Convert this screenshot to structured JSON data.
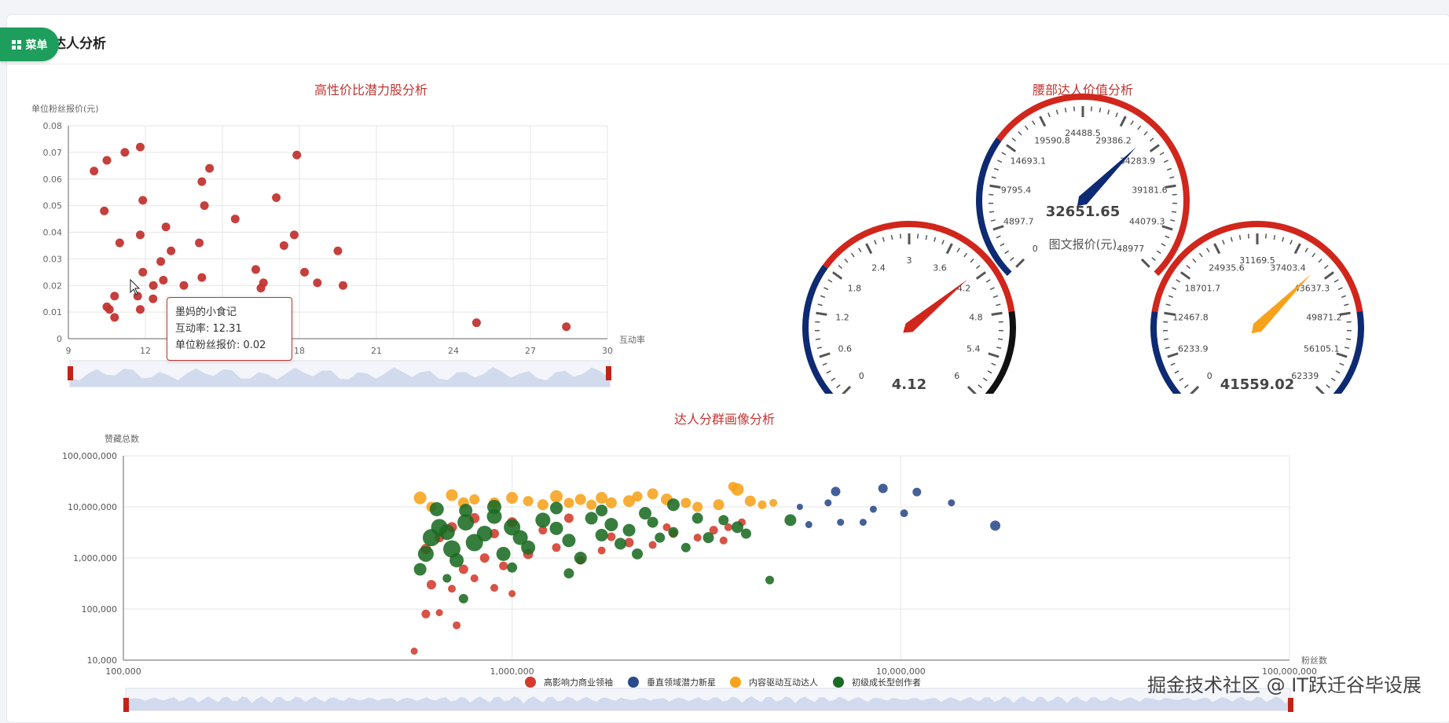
{
  "page": {
    "title": "达人分析",
    "menu_label": "菜单"
  },
  "colors": {
    "accent_red": "#c23531",
    "navy": "#0e2a72",
    "orange": "#f7a21a",
    "green": "#1b6b22",
    "menu_green": "#1e9e5c"
  },
  "watermark": "掘金技术社区 @ IT跃迁谷毕设展",
  "tooltip": {
    "name": "墨妈的小食记",
    "line1": "互动率: 12.31",
    "line2": "单位粉丝报价: 0.02"
  },
  "chart_data": [
    {
      "id": "scatter",
      "type": "scatter",
      "title": "高性价比潜力股分析",
      "xlabel": "互动率",
      "ylabel": "单位粉丝报价(元)",
      "xlim": [
        9,
        30
      ],
      "ylim": [
        0,
        0.08
      ],
      "xticks": [
        "9",
        "12",
        "15",
        "18",
        "21",
        "24",
        "27",
        "30"
      ],
      "yticks": [
        "0",
        "0.01",
        "0.02",
        "0.03",
        "0.04",
        "0.05",
        "0.06",
        "0.07",
        "0.08"
      ],
      "grid": true,
      "data_zoom": true,
      "color": "#c23531",
      "points": [
        [
          10,
          0.063
        ],
        [
          10.4,
          0.048
        ],
        [
          10.5,
          0.067
        ],
        [
          10.5,
          0.012
        ],
        [
          10.6,
          0.011
        ],
        [
          10.8,
          0.008
        ],
        [
          10.8,
          0.016
        ],
        [
          11,
          0.036
        ],
        [
          11.2,
          0.07
        ],
        [
          11.8,
          0.072
        ],
        [
          11.9,
          0.052
        ],
        [
          11.8,
          0.039
        ],
        [
          11.9,
          0.025
        ],
        [
          11.7,
          0.016
        ],
        [
          11.8,
          0.011
        ],
        [
          12.31,
          0.02
        ],
        [
          12.3,
          0.015
        ],
        [
          12.6,
          0.029
        ],
        [
          12.7,
          0.022
        ],
        [
          12.8,
          0.042
        ],
        [
          13,
          0.033
        ],
        [
          13.5,
          0.02
        ],
        [
          14.1,
          0.036
        ],
        [
          14.2,
          0.059
        ],
        [
          14.3,
          0.05
        ],
        [
          14.2,
          0.023
        ],
        [
          14.5,
          0.064
        ],
        [
          15.5,
          0.045
        ],
        [
          16.3,
          0.026
        ],
        [
          16.5,
          0.019
        ],
        [
          16.6,
          0.021
        ],
        [
          17.1,
          0.053
        ],
        [
          17.4,
          0.035
        ],
        [
          17.8,
          0.039
        ],
        [
          17.9,
          0.069
        ],
        [
          18.2,
          0.025
        ],
        [
          18.7,
          0.021
        ],
        [
          19.5,
          0.033
        ],
        [
          19.7,
          0.02
        ],
        [
          24.9,
          0.006
        ],
        [
          28.4,
          0.0045
        ]
      ]
    },
    {
      "id": "gauges",
      "type": "gauge",
      "title": "腰部达人价值分析",
      "gauges": [
        {
          "name": "图文报价(元)",
          "value": 32651.65,
          "value_label": "32651.65",
          "min": 0,
          "max": 48977,
          "pointer_color": "#0e2a72",
          "ticks": [
            "0",
            "4897.7",
            "9795.4",
            "14693.1",
            "19590.8",
            "24488.5",
            "29386.2",
            "34283.9",
            "39181.6",
            "44079.3",
            "48977"
          ],
          "bands": [
            {
              "to": 0.3,
              "color": "#0e2a72"
            },
            {
              "to": 1.0,
              "color": "#d0261c"
            }
          ]
        },
        {
          "name": "",
          "value": 4.12,
          "value_label": "4.12",
          "min": 0,
          "max": 6,
          "pointer_color": "#d0261c",
          "ticks": [
            "0",
            "0.6",
            "1.2",
            "1.8",
            "2.4",
            "3",
            "3.6",
            "4.2",
            "4.8",
            "5.4",
            "6"
          ],
          "bands": [
            {
              "to": 0.3,
              "color": "#0e2a72"
            },
            {
              "to": 0.8,
              "color": "#d0261c"
            },
            {
              "to": 1.0,
              "color": "#111111"
            }
          ]
        },
        {
          "name": "",
          "value": 41559.02,
          "value_label": "41559.02",
          "min": 0,
          "max": 62339,
          "pointer_color": "#f7a21a",
          "ticks": [
            "0",
            "6233.9",
            "12467.8",
            "18701.7",
            "24935.6",
            "31169.5",
            "37403.4",
            "43637.3",
            "49871.2",
            "56105.1",
            "62339"
          ],
          "bands": [
            {
              "to": 0.2,
              "color": "#0e2a72"
            },
            {
              "to": 0.8,
              "color": "#d0261c"
            },
            {
              "to": 1.0,
              "color": "#0e2a72"
            }
          ]
        }
      ]
    },
    {
      "id": "bubble",
      "type": "scatter",
      "title": "达人分群画像分析",
      "xlabel": "粉丝数",
      "ylabel": "赞藏总数",
      "xscale": "log",
      "yscale": "log",
      "xlim": [
        100000,
        100000000
      ],
      "ylim": [
        10000,
        100000000
      ],
      "xticks": [
        "100,000",
        "1,000,000",
        "10,000,000",
        "100,000,000"
      ],
      "yticks": [
        "10,000",
        "100,000",
        "1,000,000",
        "10,000,000",
        "100,000,000"
      ],
      "grid": true,
      "data_zoom": true,
      "legend_position": "bottom",
      "series": [
        {
          "name": "高影响力商业领袖",
          "color": "#d33a2c",
          "points": [
            [
              560000,
              15000,
              5
            ],
            [
              600000,
              80000,
              7
            ],
            [
              650000,
              85000,
              5
            ],
            [
              720000,
              48000,
              6
            ],
            [
              800000,
              400000,
              6
            ],
            [
              900000,
              260000,
              6
            ],
            [
              1000000,
              200000,
              5
            ],
            [
              620000,
              300000,
              8
            ],
            [
              700000,
              250000,
              6
            ],
            [
              750000,
              600000,
              8
            ],
            [
              850000,
              1000000,
              8
            ],
            [
              950000,
              700000,
              7
            ],
            [
              1100000,
              1200000,
              9
            ],
            [
              1300000,
              1600000,
              7
            ],
            [
              1500000,
              900000,
              7
            ],
            [
              1700000,
              1400000,
              6
            ],
            [
              2000000,
              2000000,
              8
            ],
            [
              2300000,
              1800000,
              6
            ],
            [
              2600000,
              3000000,
              7
            ],
            [
              3000000,
              2500000,
              6
            ],
            [
              3300000,
              3500000,
              7
            ],
            [
              3600000,
              4000000,
              6
            ],
            [
              3900000,
              5000000,
              6
            ],
            [
              600000,
              1500000,
              9
            ],
            [
              650000,
              2500000,
              8
            ],
            [
              700000,
              4000000,
              9
            ],
            [
              800000,
              6000000,
              9
            ],
            [
              900000,
              3000000,
              8
            ],
            [
              1000000,
              5000000,
              9
            ],
            [
              1200000,
              3500000,
              7
            ],
            [
              1400000,
              6000000,
              8
            ],
            [
              2500000,
              4000000,
              6
            ],
            [
              3500000,
              2200000,
              6
            ],
            [
              1800000,
              2600000,
              7
            ]
          ]
        },
        {
          "name": "垂直领域潜力新星",
          "color": "#2b4a8b",
          "points": [
            [
              5500000,
              10000000,
              4
            ],
            [
              5800000,
              4500000,
              5
            ],
            [
              6500000,
              12000000,
              5
            ],
            [
              6800000,
              20000000,
              8
            ],
            [
              7000000,
              5000000,
              5
            ],
            [
              8000000,
              5000000,
              5
            ],
            [
              8500000,
              9000000,
              5
            ],
            [
              9000000,
              23000000,
              8
            ],
            [
              10200000,
              7500000,
              6
            ],
            [
              11000000,
              19500000,
              7
            ],
            [
              13500000,
              12000000,
              5
            ],
            [
              17500000,
              4300000,
              9
            ]
          ]
        },
        {
          "name": "内容驱动互动达人",
          "color": "#f7a21a",
          "points": [
            [
              580000,
              15000000,
              12
            ],
            [
              620000,
              10000000,
              9
            ],
            [
              700000,
              17000000,
              11
            ],
            [
              750000,
              12000000,
              10
            ],
            [
              800000,
              14000000,
              9
            ],
            [
              900000,
              12000000,
              10
            ],
            [
              1000000,
              15000000,
              11
            ],
            [
              1100000,
              13000000,
              9
            ],
            [
              1200000,
              11000000,
              10
            ],
            [
              1300000,
              16000000,
              12
            ],
            [
              1400000,
              12000000,
              9
            ],
            [
              1500000,
              14000000,
              10
            ],
            [
              1600000,
              11000000,
              9
            ],
            [
              1700000,
              15000000,
              11
            ],
            [
              1800000,
              12000000,
              10
            ],
            [
              2000000,
              13000000,
              11
            ],
            [
              2100000,
              16000000,
              9
            ],
            [
              2300000,
              18000000,
              10
            ],
            [
              2500000,
              14000000,
              11
            ],
            [
              2800000,
              12000000,
              9
            ],
            [
              3000000,
              10000000,
              9
            ],
            [
              3400000,
              11000000,
              10
            ],
            [
              3800000,
              22000000,
              12
            ],
            [
              4100000,
              13000000,
              10
            ],
            [
              4400000,
              11000000,
              7
            ],
            [
              4700000,
              12000000,
              6
            ],
            [
              3700000,
              25000000,
              8
            ]
          ]
        },
        {
          "name": "初级成长型创作者",
          "color": "#1b6b22",
          "points": [
            [
              580000,
              600000,
              12
            ],
            [
              600000,
              1200000,
              16
            ],
            [
              620000,
              2500000,
              18
            ],
            [
              650000,
              4000000,
              17
            ],
            [
              680000,
              3200000,
              16
            ],
            [
              700000,
              1500000,
              18
            ],
            [
              720000,
              900000,
              14
            ],
            [
              760000,
              5000000,
              17
            ],
            [
              800000,
              2000000,
              18
            ],
            [
              850000,
              3000000,
              16
            ],
            [
              900000,
              6500000,
              15
            ],
            [
              950000,
              1200000,
              14
            ],
            [
              1000000,
              4000000,
              17
            ],
            [
              1050000,
              2500000,
              15
            ],
            [
              1100000,
              1600000,
              14
            ],
            [
              1200000,
              5500000,
              15
            ],
            [
              1300000,
              3800000,
              13
            ],
            [
              1400000,
              2200000,
              13
            ],
            [
              1500000,
              1000000,
              12
            ],
            [
              1600000,
              6000000,
              12
            ],
            [
              1700000,
              2800000,
              12
            ],
            [
              1800000,
              4500000,
              13
            ],
            [
              1900000,
              1900000,
              11
            ],
            [
              2000000,
              3500000,
              12
            ],
            [
              2100000,
              1200000,
              10
            ],
            [
              2200000,
              7500000,
              12
            ],
            [
              2300000,
              5000000,
              10
            ],
            [
              2400000,
              2500000,
              9
            ],
            [
              2600000,
              3200000,
              9
            ],
            [
              2800000,
              1600000,
              8
            ],
            [
              3000000,
              6000000,
              10
            ],
            [
              3200000,
              2500000,
              10
            ],
            [
              3500000,
              5500000,
              9
            ],
            [
              3800000,
              4000000,
              11
            ],
            [
              4000000,
              3000000,
              9
            ],
            [
              4600000,
              370000,
              7
            ],
            [
              5200000,
              5500000,
              11
            ],
            [
              640000,
              9000000,
              14
            ],
            [
              760000,
              8500000,
              13
            ],
            [
              900000,
              10000000,
              14
            ],
            [
              1300000,
              9500000,
              12
            ],
            [
              1700000,
              8500000,
              11
            ],
            [
              2600000,
              11000000,
              12
            ],
            [
              1400000,
              500000,
              9
            ],
            [
              1000000,
              650000,
              9
            ],
            [
              750000,
              160000,
              8
            ],
            [
              680000,
              400000,
              7
            ]
          ]
        }
      ]
    }
  ]
}
